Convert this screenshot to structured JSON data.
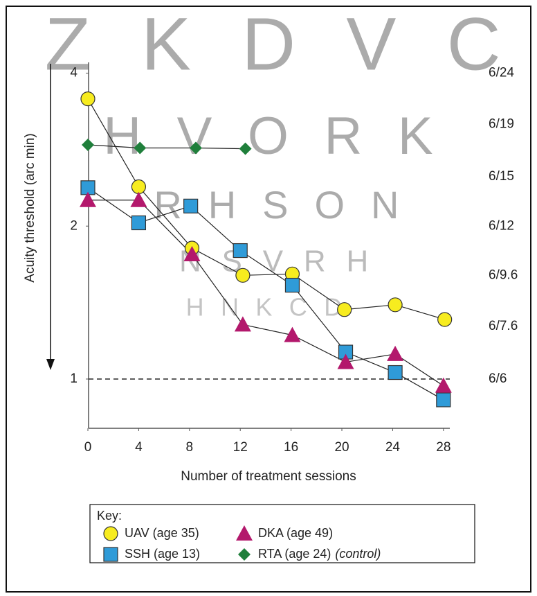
{
  "chart_data": {
    "type": "line",
    "chart_letters": [
      "Z K D V C",
      "H V O R K",
      "R H S O N",
      "N S V R H",
      "H N K C D"
    ],
    "xlabel": "Number of treatment sessions",
    "ylabel": "Acuity threshold (arc min)",
    "xlim": [
      0,
      28.5
    ],
    "xticks": [
      0,
      4,
      8,
      12,
      16,
      20,
      24,
      28
    ],
    "ylim": [
      0.8,
      4.2
    ],
    "yticks": [
      1,
      2,
      4
    ],
    "log_y": true,
    "y2lim": [
      0.8,
      4.2
    ],
    "y2ticks": [
      {
        "value": 4,
        "label": "6/24"
      },
      {
        "value": 3.17,
        "label": "6/19"
      },
      {
        "value": 2.5,
        "label": "6/15"
      },
      {
        "value": 2,
        "label": "6/12"
      },
      {
        "value": 1.6,
        "label": "6/9.6"
      },
      {
        "value": 1.27,
        "label": "6/7.6"
      },
      {
        "value": 1,
        "label": "6/6"
      }
    ],
    "reference_line": 1,
    "legend_title": "Key:",
    "legend_position": "bottom",
    "series": [
      {
        "name": "UAV (age 35)",
        "marker": "circle",
        "color": "#f7ec1f",
        "x": [
          0,
          4.0,
          8.2,
          12.2,
          16.1,
          20.2,
          24.2,
          28.1
        ],
        "values": [
          3.56,
          2.39,
          1.81,
          1.6,
          1.61,
          1.37,
          1.4,
          1.31
        ]
      },
      {
        "name": "SSH (age 13)",
        "marker": "square",
        "color": "#2f9bd8",
        "x": [
          0,
          4.0,
          8.1,
          12.0,
          16.1,
          20.3,
          24.2,
          28.0
        ],
        "values": [
          2.38,
          2.03,
          2.19,
          1.79,
          1.53,
          1.13,
          1.03,
          0.91
        ]
      },
      {
        "name": "DKA (age 49)",
        "marker": "triangle",
        "color": "#b3186c",
        "x": [
          0,
          4.0,
          8.2,
          12.2,
          16.1,
          20.3,
          24.2,
          28.0
        ],
        "values": [
          2.25,
          2.25,
          1.76,
          1.28,
          1.22,
          1.08,
          1.12,
          0.97
        ]
      },
      {
        "name": "RTA (age 24)",
        "note": "(control)",
        "marker": "diamond",
        "color": "#1f7f3b",
        "x": [
          0,
          4.1,
          8.5,
          12.4
        ],
        "values": [
          2.89,
          2.85,
          2.85,
          2.84
        ]
      }
    ]
  }
}
